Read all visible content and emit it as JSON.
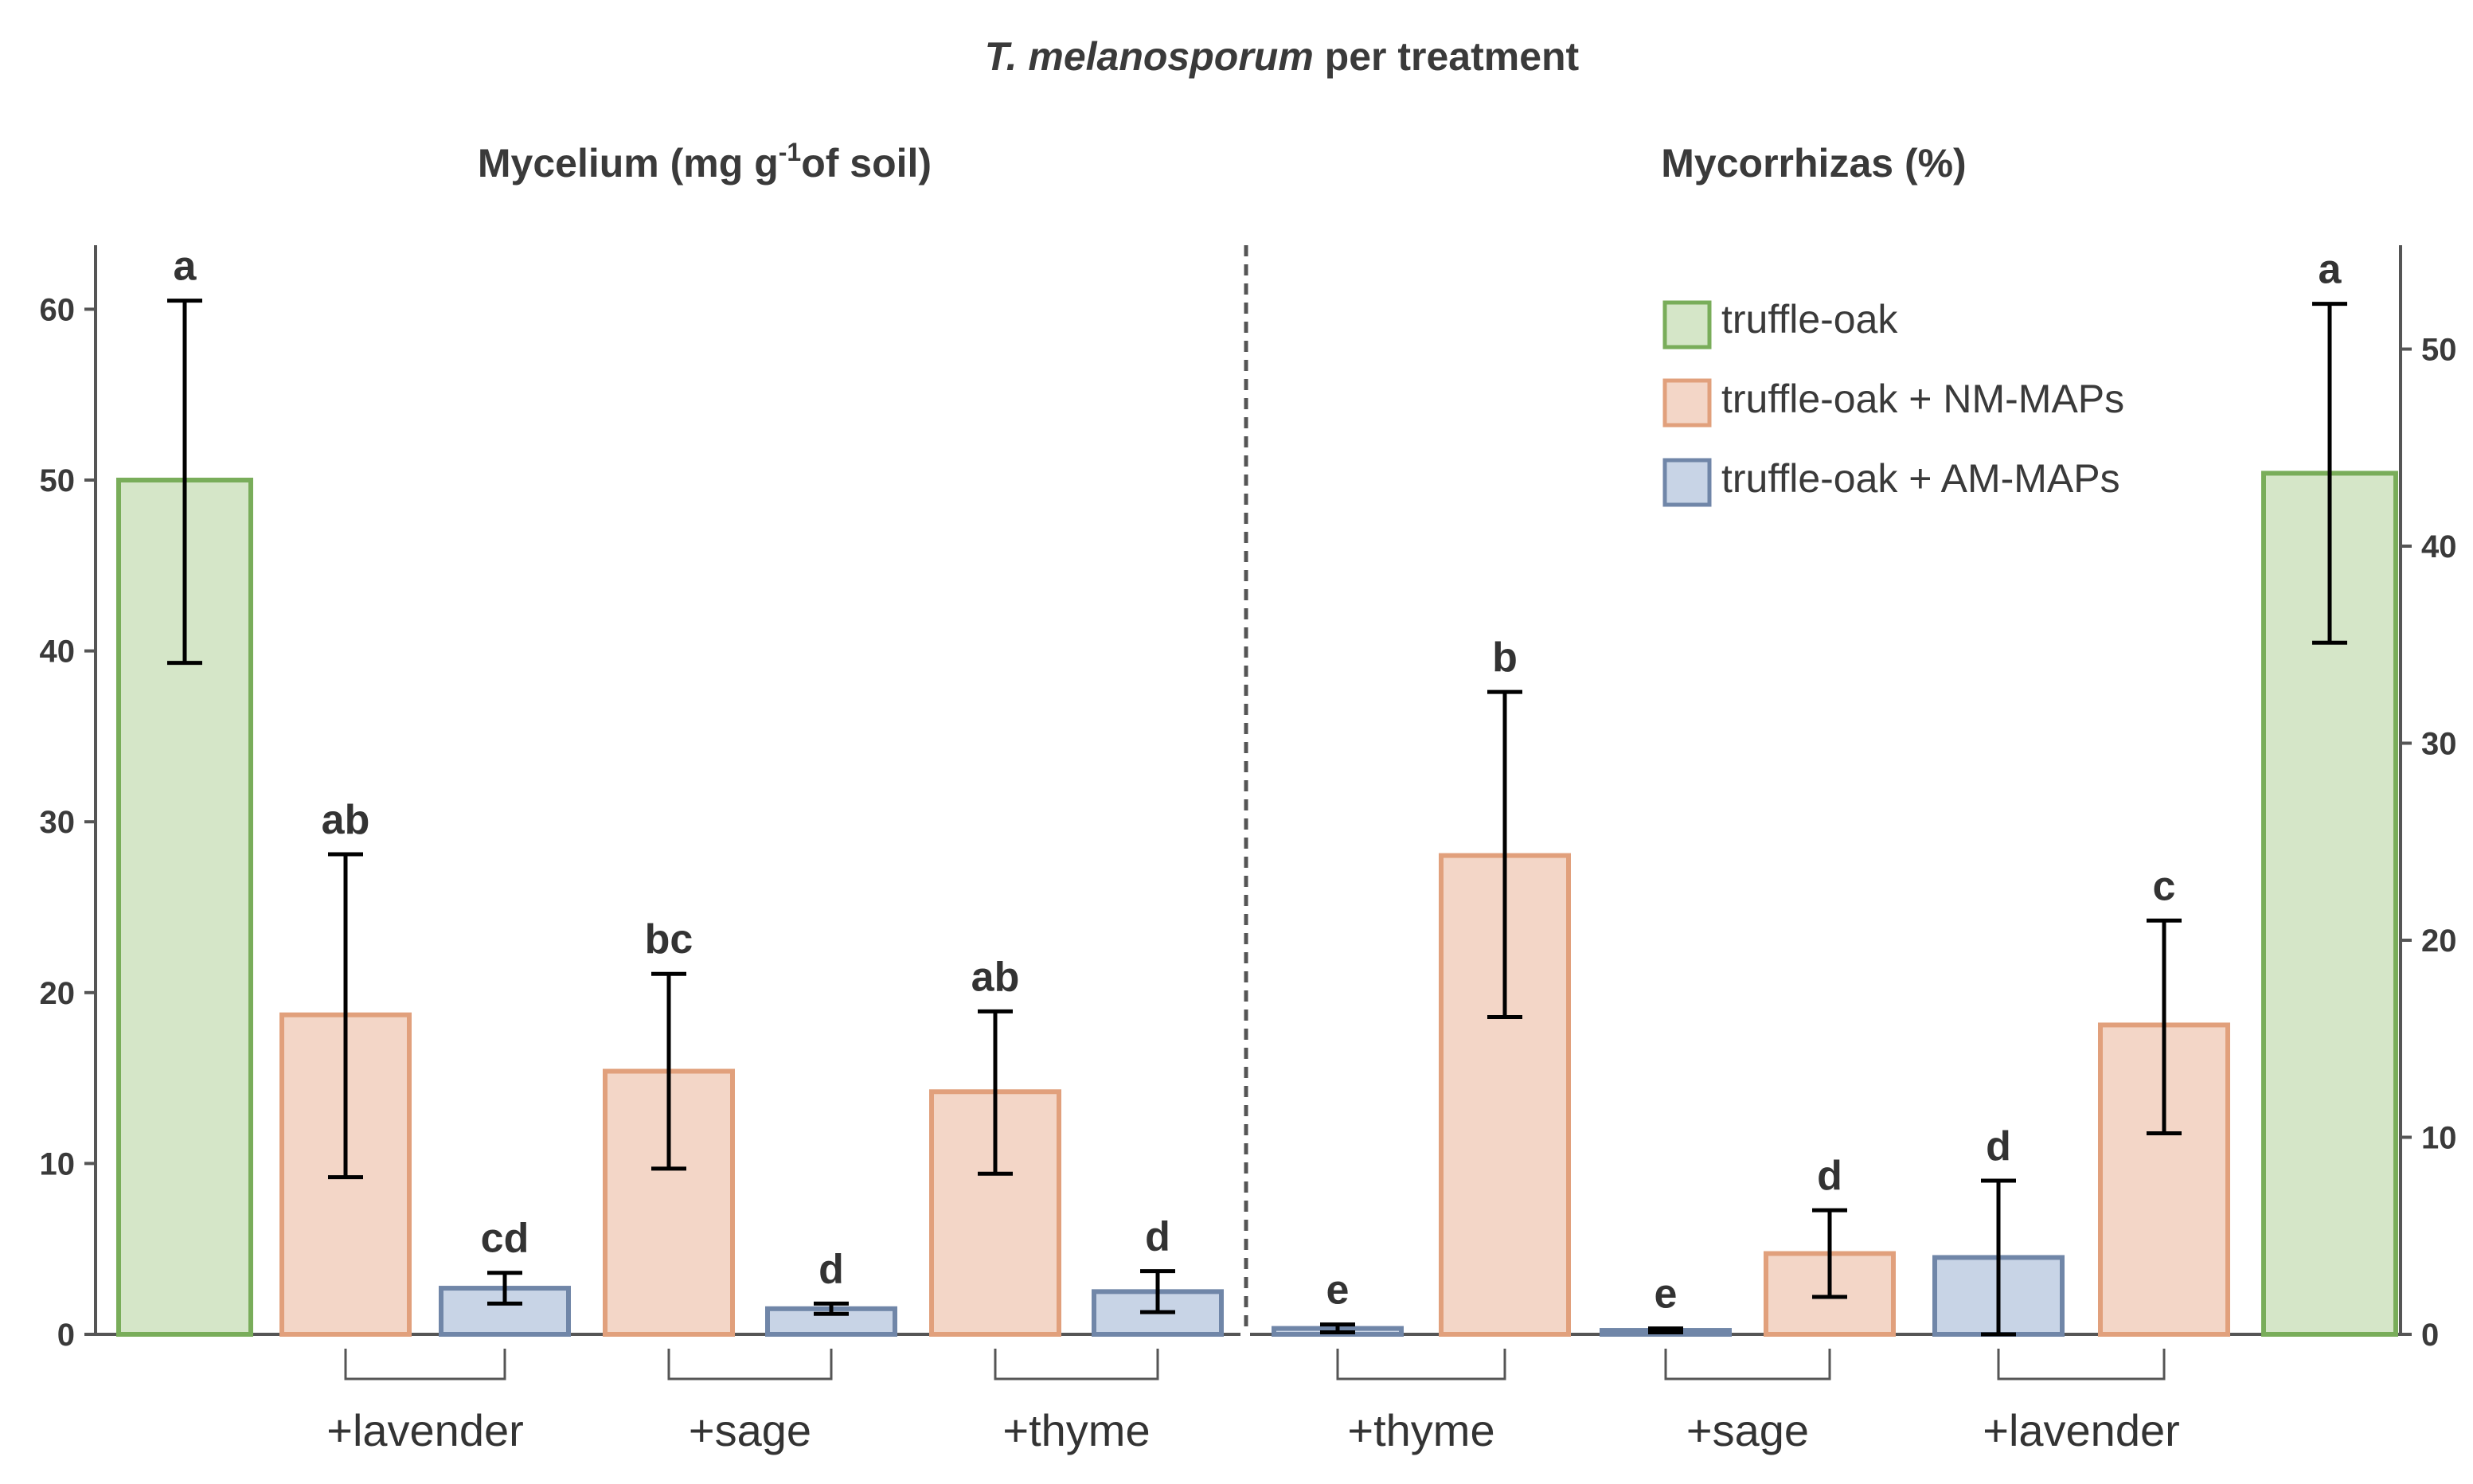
{
  "figure_title": {
    "italic": "T. melanosporum",
    "rest": " per treatment"
  },
  "legend": [
    {
      "label": "truffle-oak",
      "key": "truffle-oak"
    },
    {
      "label": "truffle-oak + NM-MAPs",
      "key": "nm"
    },
    {
      "label": "truffle-oak + AM-MAPs",
      "key": "am"
    }
  ],
  "colors": {
    "truffle-oak": {
      "fill": "#d5e6c8",
      "stroke": "#79ad5a"
    },
    "nm": {
      "fill": "#f3d6c7",
      "stroke": "#e1a07c"
    },
    "am": {
      "fill": "#c8d4e6",
      "stroke": "#7086a8"
    },
    "text": "#333333",
    "axis": "#555555"
  },
  "chart_data": [
    {
      "type": "bar",
      "panel": "left",
      "title": {
        "main": "Mycelium (mg g",
        "sup": "-1",
        "tail": "of soil)"
      },
      "ylim": [
        0,
        65
      ],
      "yticks": [
        "0",
        "10",
        "20",
        "30",
        "40",
        "50",
        "60"
      ],
      "axis_side": "left",
      "bars": [
        {
          "key": "truffle-oak",
          "value": 50,
          "err_low": 39.3,
          "err_high": 60.5,
          "sig": "a"
        },
        {
          "key": "nm",
          "value": 18.7,
          "err_low": 9.2,
          "err_high": 28.1,
          "sig": "ab",
          "group": "+lavender"
        },
        {
          "key": "am",
          "value": 2.7,
          "err_low": 1.8,
          "err_high": 3.6,
          "sig": "cd",
          "group": "+lavender"
        },
        {
          "key": "nm",
          "value": 15.4,
          "err_low": 9.7,
          "err_high": 21.1,
          "sig": "bc",
          "group": "+sage"
        },
        {
          "key": "am",
          "value": 1.5,
          "err_low": 1.2,
          "err_high": 1.8,
          "sig": "d",
          "group": "+sage"
        },
        {
          "key": "nm",
          "value": 14.2,
          "err_low": 9.4,
          "err_high": 18.9,
          "sig": "ab",
          "group": "+thyme"
        },
        {
          "key": "am",
          "value": 2.5,
          "err_low": 1.3,
          "err_high": 3.7,
          "sig": "d",
          "group": "+thyme"
        }
      ],
      "groups": [
        "+lavender",
        "+sage",
        "+thyme"
      ]
    },
    {
      "type": "bar",
      "panel": "right",
      "title": {
        "main": "Mycorrhizas (%)"
      },
      "ylim": [
        0,
        55
      ],
      "yticks": [
        "0",
        "10",
        "20",
        "30",
        "40",
        "50"
      ],
      "axis_side": "right",
      "bars": [
        {
          "key": "am",
          "value": 0.3,
          "err_low": 0.1,
          "err_high": 0.5,
          "sig": "e",
          "group": "+thyme"
        },
        {
          "key": "nm",
          "value": 24.3,
          "err_low": 16.1,
          "err_high": 32.6,
          "sig": "b",
          "group": "+thyme"
        },
        {
          "key": "am",
          "value": 0.2,
          "err_low": 0.1,
          "err_high": 0.3,
          "sig": "e",
          "group": "+sage"
        },
        {
          "key": "nm",
          "value": 4.1,
          "err_low": 1.9,
          "err_high": 6.3,
          "sig": "d",
          "group": "+sage"
        },
        {
          "key": "am",
          "value": 3.9,
          "err_low": 0,
          "err_high": 7.8,
          "sig": "d",
          "group": "+lavender"
        },
        {
          "key": "nm",
          "value": 15.7,
          "err_low": 10.2,
          "err_high": 21.0,
          "sig": "c",
          "group": "+lavender"
        },
        {
          "key": "truffle-oak",
          "value": 43.7,
          "err_low": 35.1,
          "err_high": 52.3,
          "sig": "a"
        }
      ],
      "groups": [
        "+thyme",
        "+sage",
        "+lavender"
      ]
    }
  ]
}
